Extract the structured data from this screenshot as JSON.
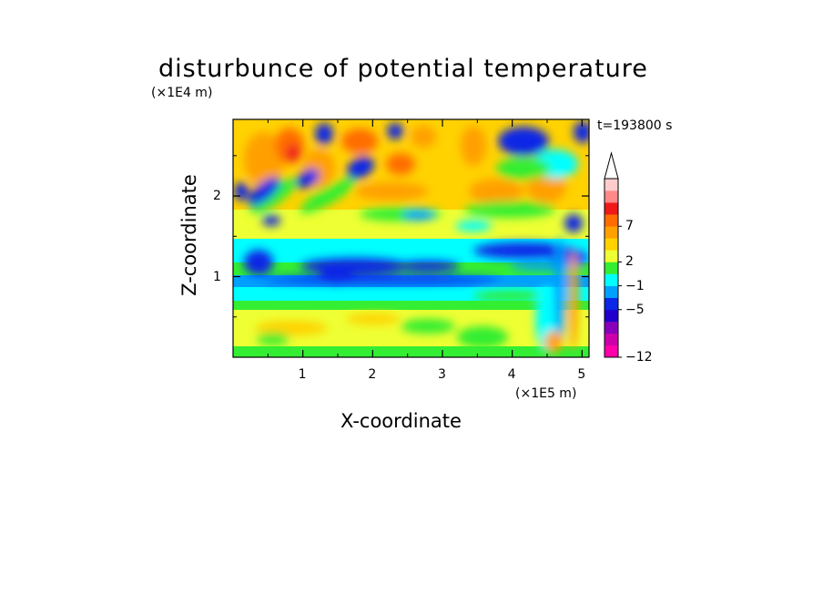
{
  "chart_data": {
    "type": "heatmap",
    "title": "disturbunce of potential temperature",
    "xlabel": "X-coordinate",
    "ylabel": "Z-coordinate",
    "x_unit": "(×1E5 m)",
    "y_unit": "(×1E4 m)",
    "time_label": "t=193800 s",
    "xlim": [
      0,
      5.1
    ],
    "ylim": [
      0,
      2.95
    ],
    "x_ticks": [
      "1",
      "2",
      "3",
      "4",
      "5"
    ],
    "y_ticks": [
      "1",
      "2"
    ],
    "colorbar": {
      "tick_labels": [
        "7",
        "2",
        "−1",
        "−5",
        "−12"
      ],
      "colors": [
        "#ff00aa",
        "#cc00aa",
        "#8800bb",
        "#2200cc",
        "#0a28e6",
        "#00a0ff",
        "#00ffff",
        "#33ee33",
        "#eeff33",
        "#ffd200",
        "#ffa000",
        "#ff6d00",
        "#ee1a1a",
        "#ff8888",
        "#ffcccc"
      ],
      "extend": "max"
    }
  }
}
